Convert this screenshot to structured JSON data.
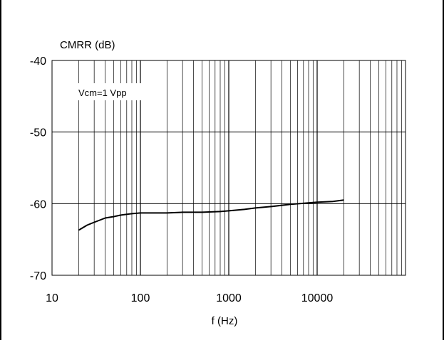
{
  "chart_data": {
    "type": "line",
    "title": "",
    "xlabel": "f (Hz)",
    "ylabel": "CMRR (dB)",
    "x_scale": "log",
    "xlim": [
      10,
      100000
    ],
    "ylim": [
      -70,
      -40
    ],
    "x_ticks": [
      10,
      100,
      1000,
      10000
    ],
    "x_tick_labels": [
      "10",
      "100",
      "1000",
      "10000"
    ],
    "y_ticks": [
      -40,
      -50,
      -60,
      -70
    ],
    "y_tick_labels": [
      "-40",
      "-50",
      "-60",
      "-70"
    ],
    "grid": true,
    "annotation": "Vcm=1 Vpp",
    "line_color": "#000000",
    "series": [
      {
        "x": [
          20,
          25,
          30,
          40,
          50,
          60,
          80,
          100,
          150,
          200,
          300,
          500,
          800,
          1000,
          1500,
          2000,
          3000,
          5000,
          8000,
          10000,
          15000,
          20000
        ],
        "values": [
          -63.7,
          -63.0,
          -62.6,
          -62.0,
          -61.8,
          -61.6,
          -61.4,
          -61.3,
          -61.3,
          -61.3,
          -61.2,
          -61.2,
          -61.1,
          -61.0,
          -60.8,
          -60.6,
          -60.4,
          -60.1,
          -59.9,
          -59.8,
          -59.7,
          -59.5
        ]
      }
    ]
  }
}
